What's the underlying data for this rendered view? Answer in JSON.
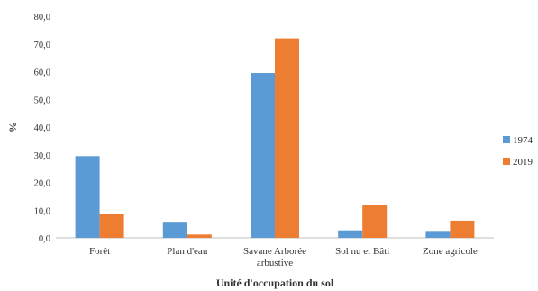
{
  "chart_data": {
    "type": "bar",
    "categories": [
      [
        "Forêt"
      ],
      [
        "Plan d'eau"
      ],
      [
        "Savane Arborée",
        "arbustive"
      ],
      [
        "Sol nu et Bâti"
      ],
      [
        "Zone agricole"
      ]
    ],
    "series": [
      {
        "name": "1974",
        "color": "#5b9bd5",
        "values": [
          29.5,
          5.8,
          59.5,
          2.7,
          2.5
        ]
      },
      {
        "name": "2019",
        "color": "#ed7d31",
        "values": [
          8.7,
          1.2,
          72.0,
          11.7,
          6.2
        ]
      }
    ],
    "ylim": [
      0,
      80
    ],
    "yticks": [
      "0,0",
      "10,0",
      "20,0",
      "30,0",
      "40,0",
      "50,0",
      "60,0",
      "70,0",
      "80,0"
    ],
    "ytick_values": [
      0,
      10,
      20,
      30,
      40,
      50,
      60,
      70,
      80
    ],
    "ylabel": "%",
    "xlabel": "Unité d'occupation du sol",
    "legend_position": "right",
    "grid": false
  }
}
